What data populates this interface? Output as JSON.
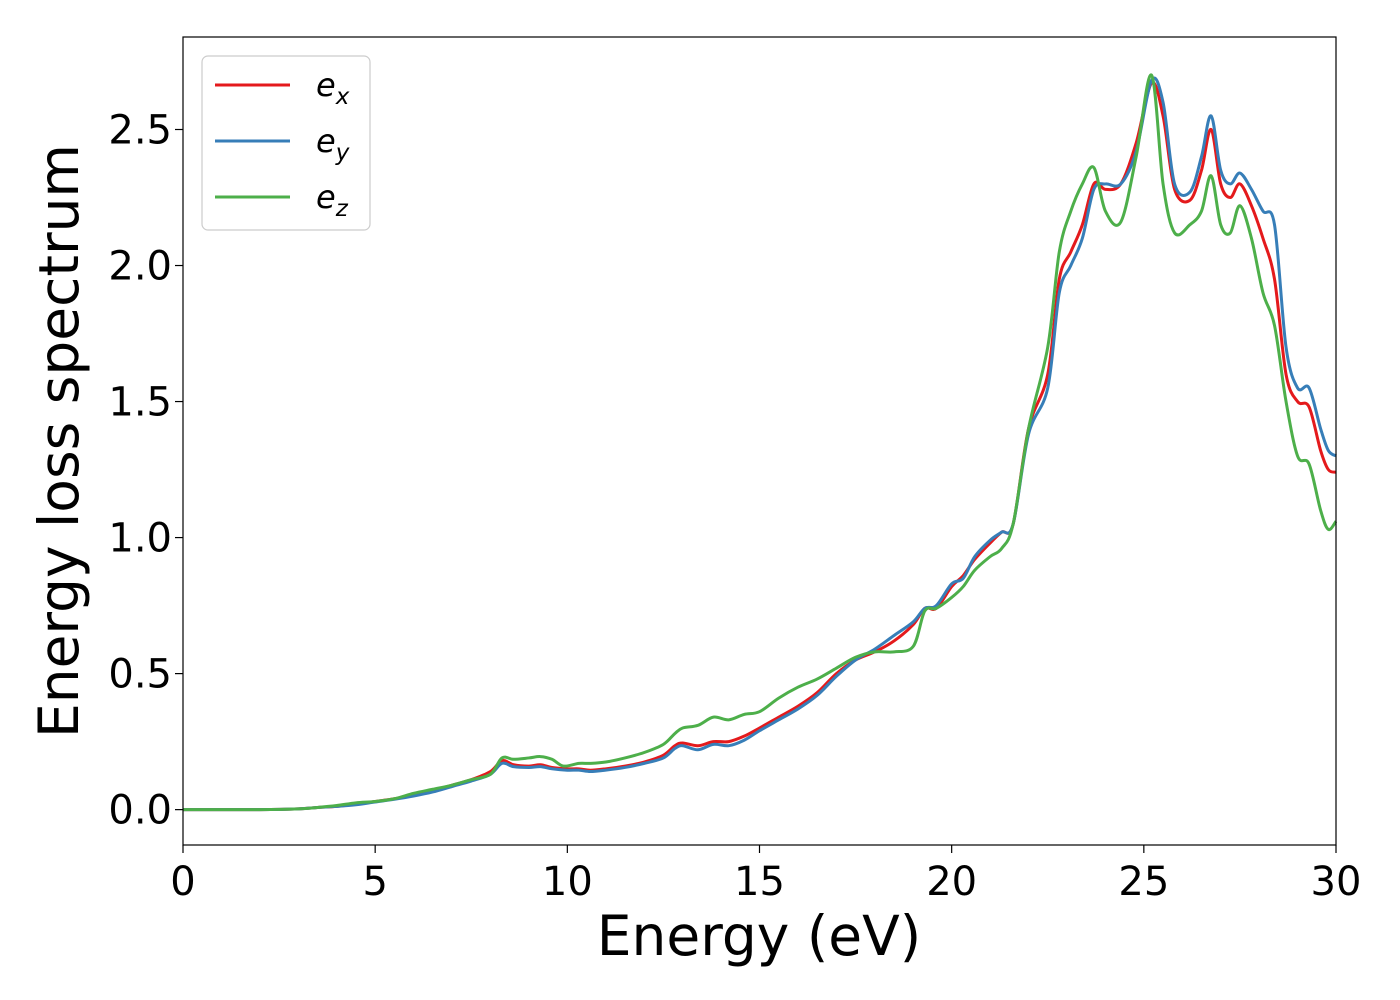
{
  "chart_data": {
    "type": "line",
    "title": "",
    "xlabel": "Energy (eV)",
    "ylabel": "Energy loss spectrum",
    "xlim": [
      0,
      30
    ],
    "ylim": [
      -0.13,
      2.84
    ],
    "xticks": [
      0,
      5,
      10,
      15,
      20,
      25,
      30
    ],
    "xtick_labels": [
      "0",
      "5",
      "10",
      "15",
      "20",
      "25",
      "30"
    ],
    "yticks": [
      0.0,
      0.5,
      1.0,
      1.5,
      2.0,
      2.5
    ],
    "ytick_labels": [
      "0.0",
      "0.5",
      "1.0",
      "1.5",
      "2.0",
      "2.5"
    ],
    "grid": false,
    "legend_position": "upper-left",
    "series": [
      {
        "name": "e_x",
        "base": "e",
        "sub": "x",
        "color": "#e41a1c",
        "x": [
          0,
          1,
          2,
          3,
          3.5,
          4,
          4.5,
          5,
          5.5,
          6,
          6.5,
          7,
          7.5,
          8,
          8.3,
          8.6,
          9,
          9.3,
          9.6,
          10,
          10.3,
          10.6,
          11,
          11.5,
          12,
          12.5,
          12.8,
          13,
          13.4,
          13.8,
          14.2,
          14.6,
          15,
          15.5,
          16,
          16.5,
          17,
          17.5,
          18,
          18.5,
          19,
          19.3,
          19.6,
          20,
          20.3,
          20.6,
          21,
          21.3,
          21.6,
          22,
          22.5,
          22.8,
          23.1,
          23.4,
          23.7,
          24,
          24.4,
          24.8,
          25.2,
          25.5,
          25.8,
          26.2,
          26.5,
          26.75,
          27,
          27.25,
          27.5,
          27.8,
          28.1,
          28.4,
          28.7,
          29,
          29.3,
          29.6,
          29.8,
          30
        ],
        "y": [
          0.0,
          0.0,
          0.0,
          0.003,
          0.008,
          0.012,
          0.02,
          0.03,
          0.04,
          0.055,
          0.07,
          0.09,
          0.11,
          0.14,
          0.18,
          0.165,
          0.16,
          0.165,
          0.155,
          0.15,
          0.15,
          0.145,
          0.15,
          0.16,
          0.175,
          0.2,
          0.235,
          0.245,
          0.235,
          0.25,
          0.25,
          0.27,
          0.3,
          0.34,
          0.38,
          0.43,
          0.5,
          0.55,
          0.58,
          0.62,
          0.68,
          0.74,
          0.74,
          0.82,
          0.86,
          0.92,
          0.98,
          1.02,
          1.05,
          1.4,
          1.6,
          1.95,
          2.05,
          2.15,
          2.3,
          2.28,
          2.3,
          2.45,
          2.67,
          2.55,
          2.28,
          2.24,
          2.35,
          2.5,
          2.3,
          2.25,
          2.3,
          2.22,
          2.1,
          1.95,
          1.6,
          1.5,
          1.48,
          1.32,
          1.25,
          1.24
        ]
      },
      {
        "name": "e_y",
        "base": "e",
        "sub": "y",
        "color": "#377eb8",
        "x": [
          0,
          1,
          2,
          3,
          3.5,
          4,
          4.5,
          5,
          5.5,
          6,
          6.5,
          7,
          7.5,
          8,
          8.3,
          8.6,
          9,
          9.3,
          9.6,
          10,
          10.3,
          10.6,
          11,
          11.5,
          12,
          12.5,
          12.8,
          13,
          13.4,
          13.8,
          14.2,
          14.6,
          15,
          15.5,
          16,
          16.5,
          17,
          17.5,
          18,
          18.5,
          19,
          19.3,
          19.6,
          20,
          20.3,
          20.6,
          21,
          21.3,
          21.6,
          22,
          22.5,
          22.8,
          23.1,
          23.4,
          23.7,
          24,
          24.4,
          24.8,
          25.2,
          25.5,
          25.8,
          26.2,
          26.5,
          26.75,
          27,
          27.25,
          27.5,
          27.8,
          28.1,
          28.4,
          28.7,
          29,
          29.3,
          29.6,
          29.8,
          30
        ],
        "y": [
          0.0,
          0.0,
          0.0,
          0.003,
          0.008,
          0.012,
          0.018,
          0.028,
          0.038,
          0.05,
          0.065,
          0.085,
          0.105,
          0.13,
          0.17,
          0.158,
          0.155,
          0.158,
          0.15,
          0.145,
          0.145,
          0.14,
          0.145,
          0.155,
          0.17,
          0.19,
          0.225,
          0.235,
          0.22,
          0.24,
          0.235,
          0.255,
          0.29,
          0.33,
          0.37,
          0.42,
          0.49,
          0.55,
          0.59,
          0.64,
          0.69,
          0.74,
          0.75,
          0.83,
          0.85,
          0.93,
          0.99,
          1.02,
          1.05,
          1.38,
          1.55,
          1.9,
          2.0,
          2.1,
          2.28,
          2.3,
          2.3,
          2.42,
          2.68,
          2.6,
          2.3,
          2.27,
          2.4,
          2.55,
          2.35,
          2.3,
          2.34,
          2.28,
          2.2,
          2.15,
          1.7,
          1.55,
          1.55,
          1.4,
          1.32,
          1.3
        ]
      },
      {
        "name": "e_z",
        "base": "e",
        "sub": "z",
        "color": "#4daf4a",
        "x": [
          0,
          1,
          2,
          3,
          3.5,
          4,
          4.5,
          5,
          5.5,
          6,
          6.5,
          7,
          7.5,
          8,
          8.3,
          8.6,
          9,
          9.3,
          9.6,
          9.9,
          10.3,
          10.6,
          11,
          11.5,
          12,
          12.5,
          12.8,
          13,
          13.4,
          13.8,
          14.2,
          14.6,
          15,
          15.5,
          16,
          16.5,
          17,
          17.5,
          18,
          18.5,
          19,
          19.3,
          19.6,
          20,
          20.3,
          20.6,
          21,
          21.3,
          21.6,
          22,
          22.5,
          22.8,
          23.1,
          23.4,
          23.7,
          24,
          24.4,
          24.8,
          25.2,
          25.5,
          25.8,
          26.2,
          26.5,
          26.75,
          27,
          27.25,
          27.5,
          27.8,
          28.1,
          28.4,
          28.7,
          29,
          29.3,
          29.6,
          29.8,
          30
        ],
        "y": [
          0.0,
          0.0,
          0.0,
          0.003,
          0.008,
          0.015,
          0.025,
          0.03,
          0.04,
          0.06,
          0.075,
          0.09,
          0.11,
          0.13,
          0.19,
          0.185,
          0.19,
          0.195,
          0.185,
          0.16,
          0.17,
          0.17,
          0.175,
          0.19,
          0.21,
          0.24,
          0.28,
          0.3,
          0.31,
          0.34,
          0.33,
          0.35,
          0.36,
          0.41,
          0.45,
          0.48,
          0.52,
          0.56,
          0.58,
          0.58,
          0.6,
          0.73,
          0.74,
          0.78,
          0.82,
          0.88,
          0.93,
          0.96,
          1.05,
          1.4,
          1.7,
          2.05,
          2.2,
          2.3,
          2.36,
          2.2,
          2.16,
          2.4,
          2.7,
          2.3,
          2.12,
          2.15,
          2.2,
          2.33,
          2.15,
          2.12,
          2.22,
          2.1,
          1.9,
          1.78,
          1.5,
          1.3,
          1.27,
          1.1,
          1.03,
          1.06
        ]
      }
    ]
  }
}
